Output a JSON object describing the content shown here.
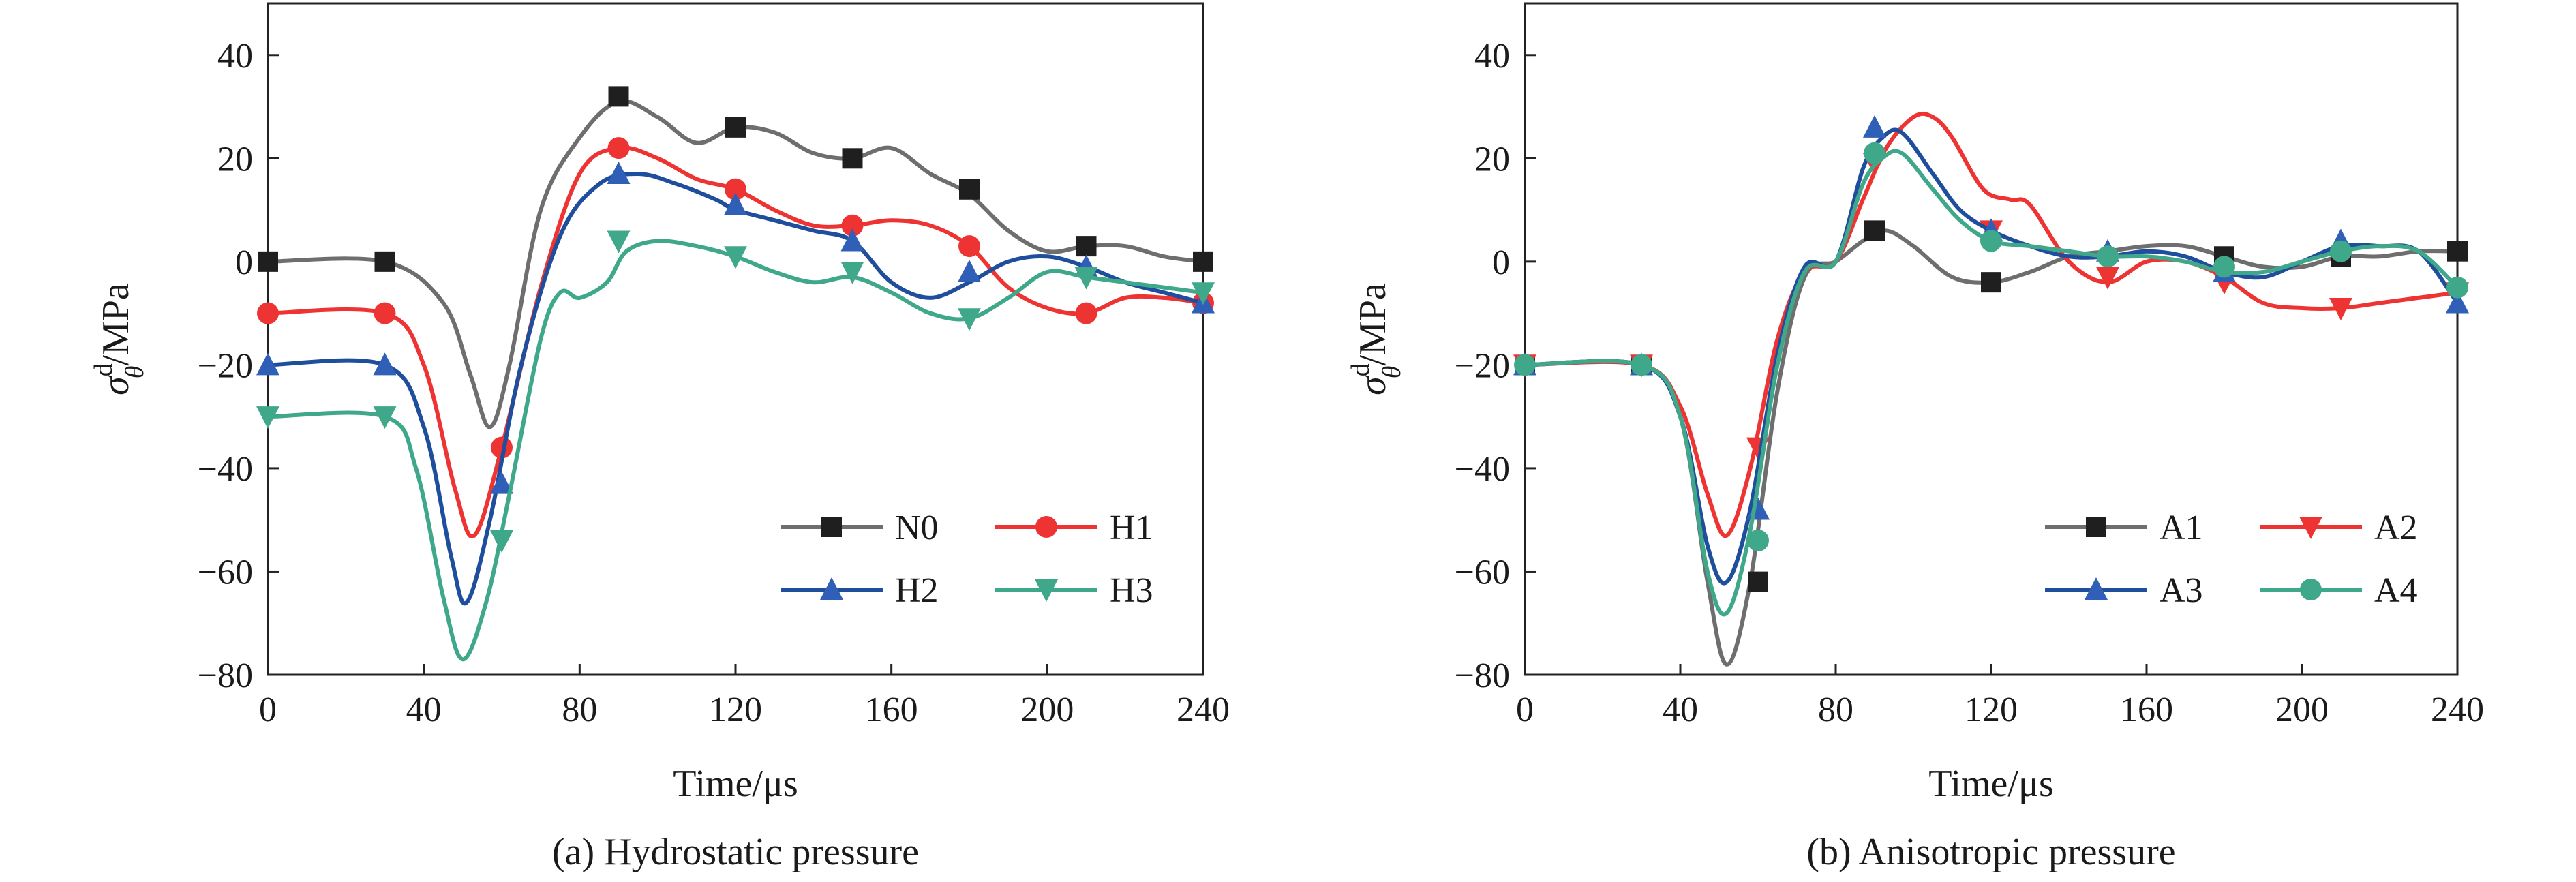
{
  "chart_data": [
    {
      "type": "line",
      "caption": "(a) Hydrostatic pressure",
      "xlabel": "Time/μs",
      "ylabel": {
        "base": "σ",
        "sub": "θ",
        "sup": "d",
        "unit": "/MPa"
      },
      "xlim": [
        0,
        240
      ],
      "ylim": [
        -80,
        50
      ],
      "xticks": [
        0,
        40,
        80,
        120,
        160,
        200,
        240
      ],
      "yticks": [
        -80,
        -60,
        -40,
        -20,
        0,
        20,
        40
      ],
      "x_tick_labels": [
        "0",
        "40",
        "80",
        "120",
        "160",
        "200",
        "240"
      ],
      "y_tick_labels": [
        "−80",
        "−60",
        "−40",
        "−20",
        "0",
        "20",
        "40"
      ],
      "grid": false,
      "legend_position": "bottom-right",
      "series": [
        {
          "name": "N0",
          "color": "#6e6e6e",
          "marker": "square",
          "marker_color": "#1f1f1f",
          "x": [
            0,
            30,
            45,
            52,
            57,
            62,
            70,
            80,
            90,
            100,
            110,
            120,
            130,
            140,
            150,
            160,
            170,
            180,
            190,
            200,
            210,
            220,
            230,
            240
          ],
          "y": [
            0,
            0,
            -8,
            -22,
            -32,
            -20,
            10,
            24,
            31,
            28,
            23,
            26,
            25,
            21,
            20,
            22,
            17,
            13,
            6,
            2,
            3,
            3,
            1,
            0
          ],
          "marker_x": [
            0,
            30,
            90,
            120,
            150,
            180,
            210,
            240
          ],
          "marker_y": [
            0,
            0,
            32,
            26,
            20,
            14,
            3,
            0
          ]
        },
        {
          "name": "H1",
          "color": "#ee3333",
          "marker": "circle",
          "marker_color": "#ee3333",
          "x": [
            0,
            30,
            40,
            48,
            53,
            60,
            70,
            80,
            90,
            100,
            110,
            120,
            130,
            140,
            150,
            160,
            170,
            180,
            190,
            200,
            210,
            220,
            230,
            240
          ],
          "y": [
            -10,
            -10,
            -20,
            -44,
            -53,
            -36,
            -5,
            17,
            22,
            20,
            16,
            14,
            10,
            7,
            7,
            8,
            7,
            3,
            -5,
            -9,
            -10,
            -7,
            -7,
            -8
          ],
          "marker_x": [
            0,
            30,
            60,
            90,
            120,
            150,
            180,
            210,
            240
          ],
          "marker_y": [
            -10,
            -10,
            -36,
            22,
            14,
            7,
            3,
            -10,
            -8
          ]
        },
        {
          "name": "H2",
          "color": "#1f4e9c",
          "marker": "triangle-up",
          "marker_color": "#2f5fb7",
          "x": [
            0,
            30,
            40,
            47,
            51,
            57,
            65,
            75,
            85,
            95,
            105,
            115,
            120,
            130,
            140,
            150,
            160,
            170,
            180,
            190,
            200,
            210,
            220,
            230,
            240
          ],
          "y": [
            -20,
            -20,
            -32,
            -57,
            -66,
            -50,
            -20,
            5,
            15,
            17,
            15,
            12,
            10,
            8,
            6,
            4,
            -4,
            -7,
            -4,
            0,
            1,
            -1,
            -4,
            -6,
            -8
          ],
          "marker_x": [
            0,
            30,
            60,
            90,
            120,
            150,
            180,
            210,
            240
          ],
          "marker_y": [
            -20,
            -20,
            -43,
            17,
            11,
            4,
            -2,
            -1,
            -8
          ]
        },
        {
          "name": "H3",
          "color": "#3fa88a",
          "marker": "triangle-down",
          "marker_color": "#3fa88a",
          "x": [
            0,
            30,
            38,
            45,
            50,
            56,
            62,
            70,
            75,
            80,
            87,
            92,
            100,
            110,
            120,
            130,
            140,
            150,
            160,
            170,
            180,
            190,
            200,
            210,
            220,
            230,
            240
          ],
          "y": [
            -30,
            -30,
            -40,
            -65,
            -77,
            -66,
            -45,
            -15,
            -6,
            -7,
            -4,
            2,
            4,
            3,
            1,
            -2,
            -4,
            -3,
            -6,
            -10,
            -11,
            -7,
            -2,
            -3,
            -4,
            -5,
            -6
          ],
          "marker_x": [
            0,
            30,
            60,
            90,
            120,
            150,
            180,
            210,
            240
          ],
          "marker_y": [
            -30,
            -30,
            -54,
            4,
            1,
            -2,
            -11,
            -3,
            -6
          ]
        }
      ]
    },
    {
      "type": "line",
      "caption": "(b) Anisotropic pressure",
      "xlabel": "Time/μs",
      "ylabel": {
        "base": "σ",
        "sub": "θ",
        "sup": "d",
        "unit": "/MPa"
      },
      "xlim": [
        0,
        240
      ],
      "ylim": [
        -80,
        50
      ],
      "xticks": [
        0,
        40,
        80,
        120,
        160,
        200,
        240
      ],
      "yticks": [
        -80,
        -60,
        -40,
        -20,
        0,
        20,
        40
      ],
      "x_tick_labels": [
        "0",
        "40",
        "80",
        "120",
        "160",
        "200",
        "240"
      ],
      "y_tick_labels": [
        "−80",
        "−60",
        "−40",
        "−20",
        "0",
        "20",
        "40"
      ],
      "grid": false,
      "legend_position": "bottom-right",
      "series": [
        {
          "name": "A1",
          "color": "#6e6e6e",
          "marker": "square",
          "marker_color": "#1f1f1f",
          "x": [
            0,
            30,
            40,
            47,
            52,
            58,
            65,
            72,
            80,
            87,
            93,
            100,
            110,
            120,
            130,
            140,
            150,
            160,
            170,
            180,
            190,
            200,
            210,
            220,
            230,
            240
          ],
          "y": [
            -20,
            -20,
            -30,
            -62,
            -78,
            -62,
            -25,
            -3,
            0,
            4,
            6,
            3,
            -3,
            -4,
            -2,
            1,
            2,
            3,
            3,
            1,
            -1,
            -1,
            1,
            1,
            2,
            2
          ],
          "marker_x": [
            0,
            30,
            60,
            90,
            120,
            180,
            210,
            240
          ],
          "marker_y": [
            -20,
            -20,
            -62,
            6,
            -4,
            1,
            1,
            2
          ]
        },
        {
          "name": "A2",
          "color": "#ee3333",
          "marker": "triangle-down",
          "marker_color": "#ee3333",
          "x": [
            0,
            30,
            40,
            47,
            52,
            58,
            65,
            72,
            80,
            87,
            93,
            100,
            105,
            110,
            118,
            125,
            130,
            140,
            150,
            160,
            170,
            180,
            190,
            200,
            210,
            220,
            230,
            240
          ],
          "y": [
            -20,
            -20,
            -28,
            -45,
            -53,
            -40,
            -15,
            -2,
            0,
            12,
            22,
            28,
            28,
            24,
            14,
            12,
            11,
            0,
            -4,
            0,
            0,
            -3,
            -8,
            -9,
            -9,
            -8,
            -7,
            -6
          ],
          "marker_x": [
            0,
            30,
            60,
            90,
            120,
            150,
            180,
            210,
            240
          ],
          "marker_y": [
            -20,
            -20,
            -36,
            19,
            6,
            -3,
            -4,
            -9,
            -6
          ]
        },
        {
          "name": "A3",
          "color": "#1f4e9c",
          "marker": "triangle-up",
          "marker_color": "#2f5fb7",
          "x": [
            0,
            30,
            40,
            47,
            52,
            58,
            65,
            72,
            80,
            87,
            92,
            97,
            105,
            112,
            120,
            130,
            140,
            150,
            160,
            170,
            180,
            190,
            200,
            210,
            220,
            230,
            240
          ],
          "y": [
            -20,
            -20,
            -30,
            -55,
            -62,
            -48,
            -18,
            -1,
            0,
            18,
            24,
            25,
            17,
            10,
            6,
            3,
            1,
            1,
            2,
            1,
            -2,
            -3,
            0,
            3,
            3,
            2,
            -8
          ],
          "marker_x": [
            0,
            30,
            60,
            90,
            120,
            150,
            180,
            210,
            240
          ],
          "marker_y": [
            -20,
            -20,
            -48,
            26,
            6,
            2,
            -2,
            4,
            -8
          ]
        },
        {
          "name": "A4",
          "color": "#3fa88a",
          "marker": "circle",
          "marker_color": "#3fa88a",
          "x": [
            0,
            30,
            40,
            47,
            52,
            58,
            65,
            72,
            80,
            87,
            92,
            97,
            105,
            112,
            120,
            130,
            140,
            150,
            160,
            170,
            180,
            190,
            200,
            210,
            220,
            230,
            240
          ],
          "y": [
            -20,
            -20,
            -30,
            -60,
            -68,
            -52,
            -20,
            -2,
            0,
            15,
            20,
            21,
            14,
            8,
            4,
            3,
            2,
            1,
            1,
            0,
            -2,
            -2,
            0,
            2,
            3,
            2,
            -5
          ],
          "marker_x": [
            0,
            30,
            60,
            90,
            120,
            150,
            180,
            210,
            240
          ],
          "marker_y": [
            -20,
            -20,
            -54,
            21,
            4,
            1,
            -1,
            2,
            -5
          ]
        }
      ]
    }
  ]
}
